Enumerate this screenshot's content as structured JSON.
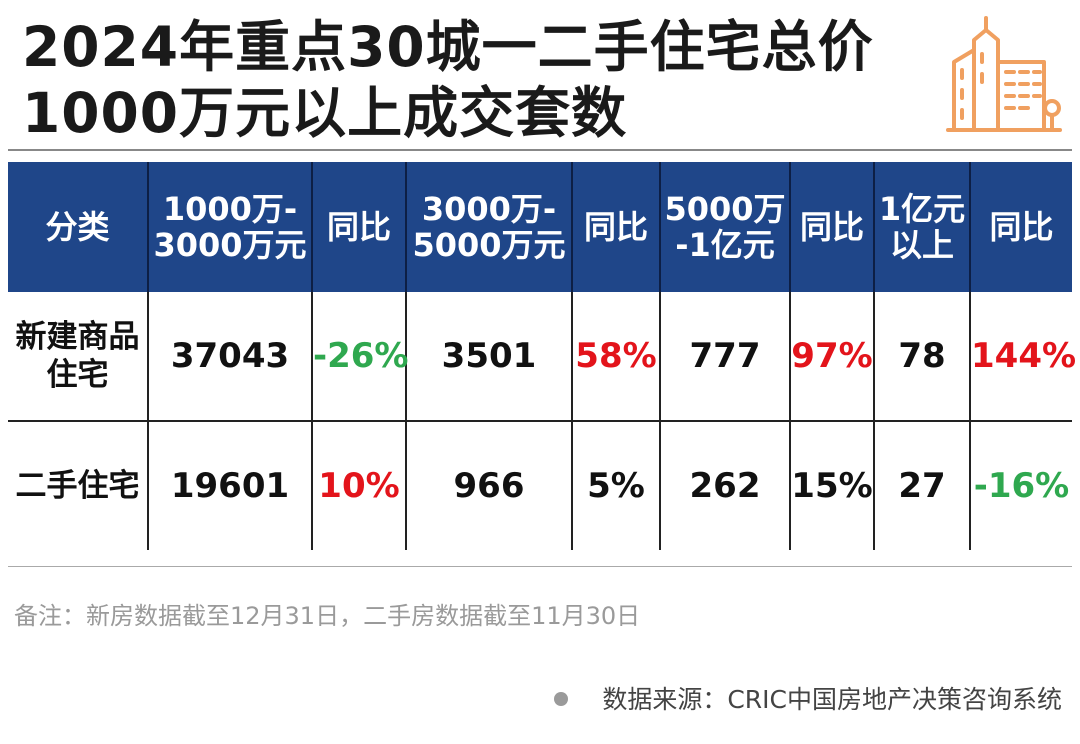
{
  "title": {
    "line1": "2024年重点30城一二手住宅总价",
    "line2": "1000万元以上成交套数"
  },
  "logo_icon": "buildings-icon",
  "colors": {
    "header_bg": "#1f4689",
    "increase": "#e3141b",
    "decrease": "#2fa84f",
    "logo": "#f0a060"
  },
  "chart_data": {
    "type": "table",
    "columns": [
      [
        "分类"
      ],
      [
        "1000万-",
        "3000万元"
      ],
      [
        "同比"
      ],
      [
        "3000万-",
        "5000万元"
      ],
      [
        "同比"
      ],
      [
        "5000万",
        "-1亿元"
      ],
      [
        "同比"
      ],
      [
        "1亿元",
        "以上"
      ],
      [
        "同比"
      ]
    ],
    "rows": [
      {
        "category": [
          "新建商品",
          "住宅"
        ],
        "cells": [
          {
            "text": "37043",
            "tone": ""
          },
          {
            "text": "-26%",
            "tone": "green"
          },
          {
            "text": "3501",
            "tone": ""
          },
          {
            "text": "58%",
            "tone": "red"
          },
          {
            "text": "777",
            "tone": ""
          },
          {
            "text": "97%",
            "tone": "red"
          },
          {
            "text": "78",
            "tone": ""
          },
          {
            "text": "144%",
            "tone": "red"
          }
        ]
      },
      {
        "category": [
          "二手住宅"
        ],
        "cells": [
          {
            "text": "19601",
            "tone": ""
          },
          {
            "text": "10%",
            "tone": "red"
          },
          {
            "text": "966",
            "tone": ""
          },
          {
            "text": "5%",
            "tone": ""
          },
          {
            "text": "262",
            "tone": ""
          },
          {
            "text": "15%",
            "tone": ""
          },
          {
            "text": "27",
            "tone": ""
          },
          {
            "text": "-16%",
            "tone": "green"
          }
        ]
      }
    ]
  },
  "footnote": "备注：新房数据截至12月31日，二手房数据截至11月30日",
  "source": "数据来源：CRIC中国房地产决策咨询系统"
}
